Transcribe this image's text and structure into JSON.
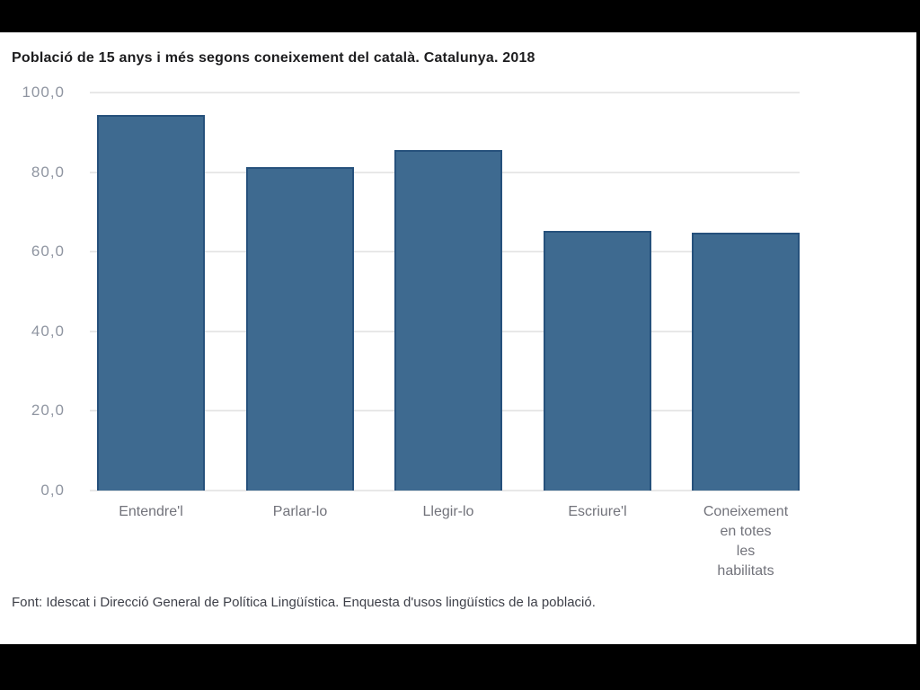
{
  "window": {
    "letterbox_color": "#000000",
    "card_background": "#ffffff"
  },
  "chart_data": {
    "type": "bar",
    "title": "Població de 15 anys i més segons coneixement del català. Catalunya. 2018",
    "source": "Font: Idescat i Direcció General de Política Lingüística. Enquesta d'usos lingüístics de la població.",
    "categories": [
      "Entendre'l",
      "Parlar-lo",
      "Llegir-lo",
      "Escriure'l",
      "Coneixement en totes les habilitats"
    ],
    "category_lines": [
      [
        "Entendre'l"
      ],
      [
        "Parlar-lo"
      ],
      [
        "Llegir-lo"
      ],
      [
        "Escriure'l"
      ],
      [
        "Coneixement",
        "en totes",
        "les",
        "habilitats"
      ]
    ],
    "values": [
      94.4,
      81.2,
      85.5,
      65.3,
      64.8
    ],
    "xlabel": "",
    "ylabel": "",
    "ylim": [
      0,
      100
    ],
    "yticks": [
      "100,0",
      "80,0",
      "60,0",
      "40,0",
      "20,0",
      "0,0"
    ],
    "ytick_values": [
      100,
      80,
      60,
      40,
      20,
      0
    ],
    "grid": true,
    "legend": "none",
    "colors": {
      "bar_fill": "#3e6a90",
      "bar_border": "#26517c",
      "gridline": "#e8e8e8",
      "title_text": "#1d1d1f",
      "ytick_text": "#8f95a1",
      "xtick_text": "#72737b",
      "source_text": "#3e4049"
    }
  }
}
